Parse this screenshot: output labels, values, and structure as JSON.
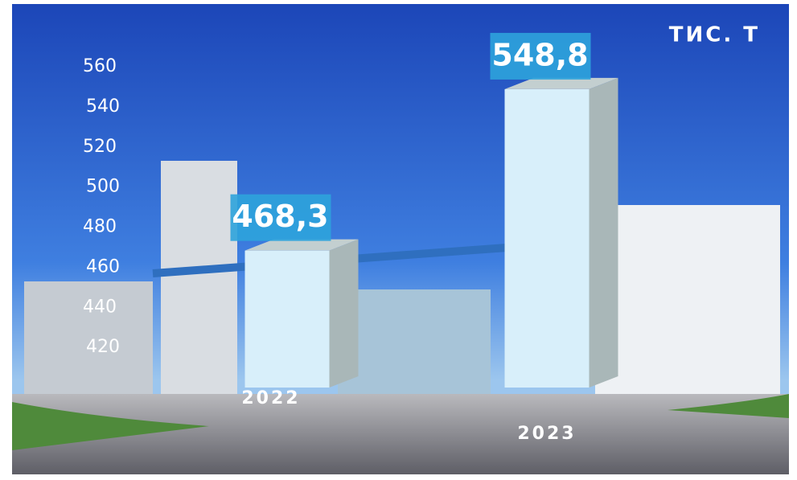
{
  "chart_data": {
    "type": "bar3d",
    "unit": "ТИС. Т",
    "categories": [
      "2022",
      "2023"
    ],
    "values": [
      468.3,
      548.8
    ],
    "value_labels": [
      "468,3",
      "548,8"
    ],
    "color": "#d8effa",
    "ylim": [
      400,
      560
    ],
    "yticks": [
      420,
      440,
      460,
      480,
      500,
      520,
      540,
      560
    ]
  }
}
